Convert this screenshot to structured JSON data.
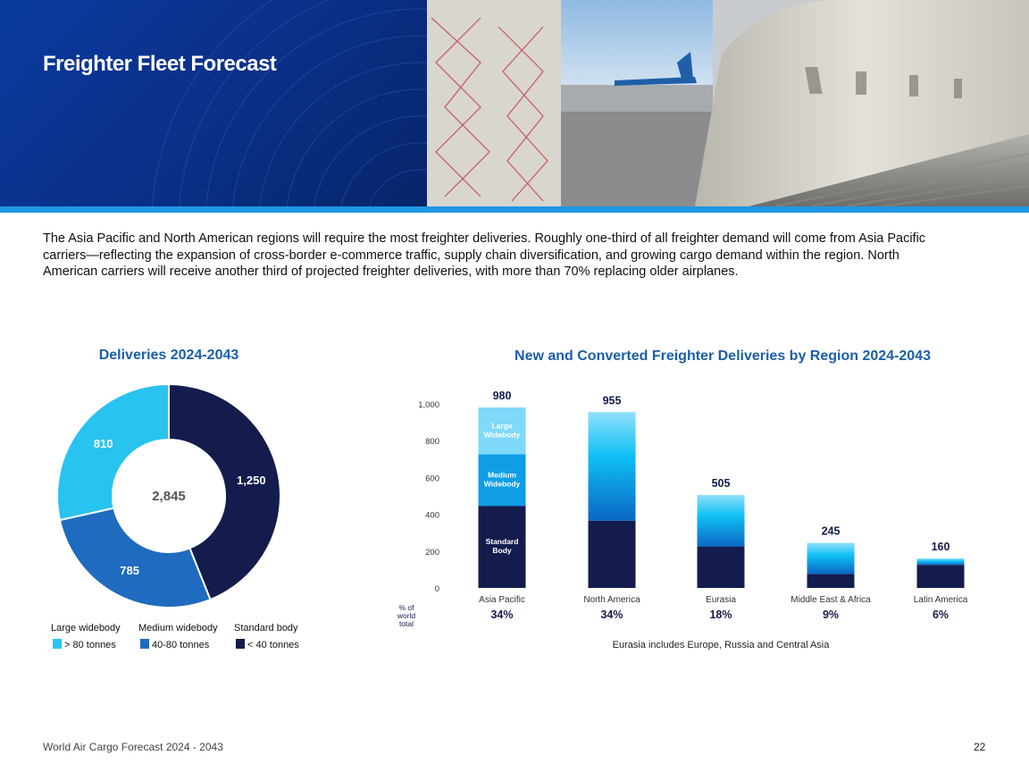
{
  "header": {
    "title": "Freighter Fleet Forecast"
  },
  "intro_text": "The Asia Pacific and North American regions will require the most freighter deliveries. Roughly one-third of all freighter demand will come from Asia Pacific carriers—reflecting the expansion of cross-border e-commerce traffic, supply chain diversification, and growing cargo demand within the region. North American carriers will receive another third of projected freighter deliveries, with more than 70% replacing older airplanes.",
  "colors": {
    "large": "#29c3f0",
    "medium": "#1e6bbf",
    "standard": "#131c4c",
    "title_blue": "#1a5fa8"
  },
  "chart_data": [
    {
      "type": "pie",
      "title": "Deliveries 2024-2043",
      "total_label": "2,845",
      "slices": [
        {
          "name": "Standard body",
          "value": 1250,
          "label": "1,250"
        },
        {
          "name": "Medium widebody",
          "value": 785,
          "label": "785"
        },
        {
          "name": "Large widebody",
          "value": 810,
          "label": "810"
        }
      ],
      "legend": [
        {
          "name": "Large widebody",
          "desc": "> 80 tonnes"
        },
        {
          "name": "Medium widebody",
          "desc": "40-80 tonnes"
        },
        {
          "name": "Standard body",
          "desc": "< 40 tonnes"
        }
      ]
    },
    {
      "type": "bar",
      "stacked": true,
      "title": "New and Converted Freighter Deliveries by Region 2024-2043",
      "categories": [
        "Asia Pacific",
        "North America",
        "Eurasia",
        "Middle East & Africa",
        "Latin America"
      ],
      "totals": [
        980,
        955,
        505,
        245,
        160
      ],
      "total_labels": [
        "980",
        "955",
        "505",
        "245",
        "160"
      ],
      "series": [
        {
          "name": "Standard Body",
          "values": [
            445,
            365,
            225,
            75,
            125
          ]
        },
        {
          "name": "Medium Widebody",
          "values": [
            280,
            590,
            280,
            170,
            35
          ]
        },
        {
          "name": "Large Widebody",
          "values": [
            255,
            0,
            0,
            0,
            0
          ]
        }
      ],
      "segment_labels": [
        "Large\nWidebody",
        "Medium\nWidebody",
        "Standard\nBody"
      ],
      "share_labels": [
        "34%",
        "34%",
        "18%",
        "9%",
        "6%"
      ],
      "share_axis_label": "% of\nworld\ntotal",
      "ylim": [
        0,
        1000
      ],
      "yticks": [
        0,
        200,
        400,
        600,
        800,
        1000
      ],
      "ytick_labels": [
        "0",
        "200",
        "400",
        "600",
        "800",
        "1,000"
      ],
      "note": "Eurasia includes Europe, Russia and Central Asia"
    }
  ],
  "footer": {
    "left": "World Air Cargo Forecast 2024 - 2043",
    "page": "22"
  }
}
